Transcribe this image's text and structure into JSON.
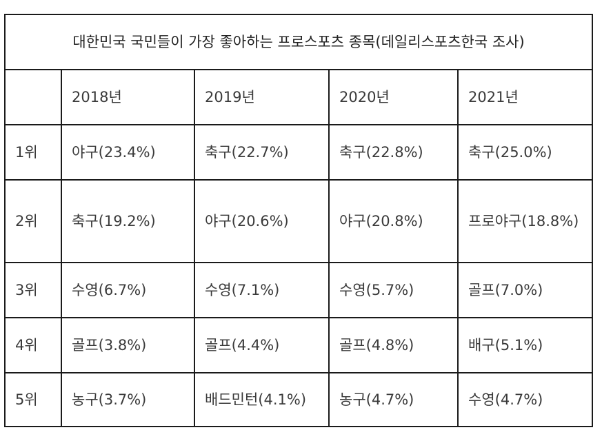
{
  "table": {
    "title": "대한민국 국민들이 가장 좋아하는 프로스포츠 종목(데일리스포츠한국 조사)",
    "headers": [
      "",
      "2018년",
      "2019년",
      "2020년",
      "2021년"
    ],
    "rows": [
      {
        "rank": "1위",
        "cells": [
          "야구(23.4%)",
          "축구(22.7%)",
          "축구(22.8%)",
          "축구(25.0%)"
        ]
      },
      {
        "rank": "2위",
        "cells": [
          "축구(19.2%)",
          "야구(20.6%)",
          "야구(20.8%)",
          "프로야구(18.8%)"
        ]
      },
      {
        "rank": "3위",
        "cells": [
          "수영(6.7%)",
          "수영(7.1%)",
          "수영(5.7%)",
          "골프(7.0%)"
        ]
      },
      {
        "rank": "4위",
        "cells": [
          "골프(3.8%)",
          "골프(4.4%)",
          "골프(4.8%)",
          "배구(5.1%)"
        ]
      },
      {
        "rank": "5위",
        "cells": [
          "농구(3.7%)",
          "배드민턴(4.1%)",
          "농구(4.7%)",
          "수영(4.7%)"
        ]
      }
    ]
  }
}
